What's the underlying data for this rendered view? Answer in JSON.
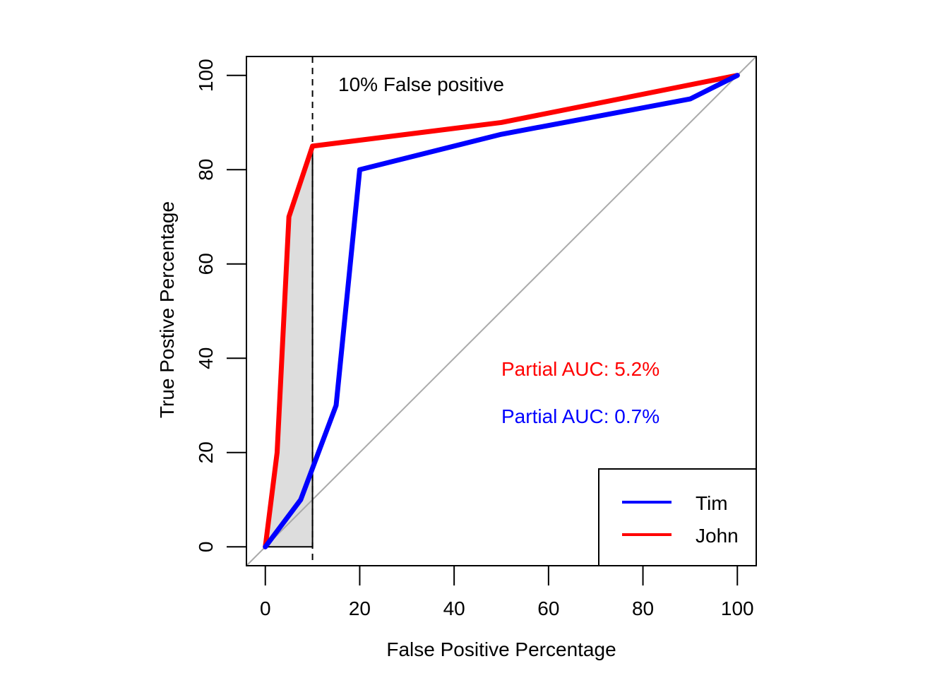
{
  "chart_data": {
    "type": "line",
    "title": "",
    "xlabel": "False Positive Percentage",
    "ylabel": "True Postive Percentage",
    "xlim": [
      -4,
      104
    ],
    "ylim": [
      -4,
      104
    ],
    "xticks": [
      0,
      20,
      40,
      60,
      80,
      100
    ],
    "yticks": [
      0,
      20,
      40,
      60,
      80,
      100
    ],
    "xtick_labels": [
      "0",
      "20",
      "40",
      "60",
      "80",
      "100"
    ],
    "ytick_labels": [
      "0",
      "20",
      "40",
      "60",
      "80",
      "100"
    ],
    "grid": false,
    "diagonal_reference": {
      "from": [
        -4,
        -4
      ],
      "to": [
        104,
        104
      ],
      "color": "#aaaaaa"
    },
    "series": [
      {
        "name": "John",
        "color": "#ff0000",
        "x": [
          0,
          2.5,
          5,
          10,
          50,
          100
        ],
        "y": [
          0,
          20,
          70,
          85,
          90,
          100
        ]
      },
      {
        "name": "Tim",
        "color": "#0000ff",
        "x": [
          0,
          7.5,
          15,
          20,
          50,
          90,
          100
        ],
        "y": [
          0,
          10,
          30,
          80,
          87.5,
          95,
          100
        ]
      }
    ],
    "shaded_region": {
      "description": "Partial AUC region of John up to 10% FPR",
      "series": "John",
      "x_max": 10,
      "color": "#dddddd"
    },
    "threshold_line": {
      "x": 10,
      "style": "dashed",
      "label": "10% False positive"
    },
    "annotations": [
      {
        "text": "10% False positive",
        "x": 35,
        "y": 98,
        "color": "#000000"
      },
      {
        "text": "Partial AUC: 5.2%",
        "x": 69,
        "y": 38,
        "color": "#ff0000"
      },
      {
        "text": "Partial AUC: 0.7%",
        "x": 69,
        "y": 28,
        "color": "#0000ff"
      }
    ],
    "legend": {
      "position": "bottom-right",
      "entries": [
        {
          "label": "Tim",
          "color": "#0000ff"
        },
        {
          "label": "John",
          "color": "#ff0000"
        }
      ]
    }
  }
}
